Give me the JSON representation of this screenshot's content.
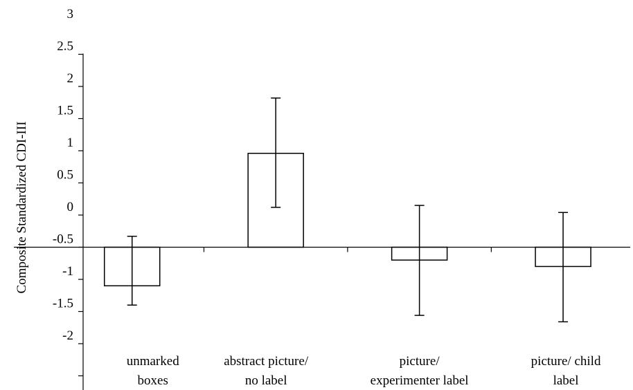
{
  "chart_data": {
    "type": "bar",
    "ylabel": "Composite Standardized CDI-III",
    "ylim": [
      -2.5,
      3
    ],
    "yticks": [
      3,
      2.5,
      2,
      1.5,
      1,
      0.5,
      0,
      -0.5,
      -1,
      -1.5,
      -2
    ],
    "ytick_labels": [
      "3",
      "2.5",
      "2",
      "1.5",
      "1",
      "0.5",
      "0",
      "-0.5",
      "-1",
      "-1.5",
      "-2"
    ],
    "baseline": -0.5,
    "categories": [
      [
        "unmarked",
        "boxes"
      ],
      [
        "abstract picture/",
        "no label"
      ],
      [
        "picture/",
        "experimenter label"
      ],
      [
        "picture/ child",
        "label"
      ]
    ],
    "values": [
      -1.1,
      0.96,
      -0.7,
      -0.8
    ],
    "error_low": [
      -1.4,
      0.12,
      -1.56,
      -1.66
    ],
    "error_high": [
      -0.33,
      1.82,
      0.15,
      0.04
    ],
    "grid": false,
    "legend": "none"
  }
}
